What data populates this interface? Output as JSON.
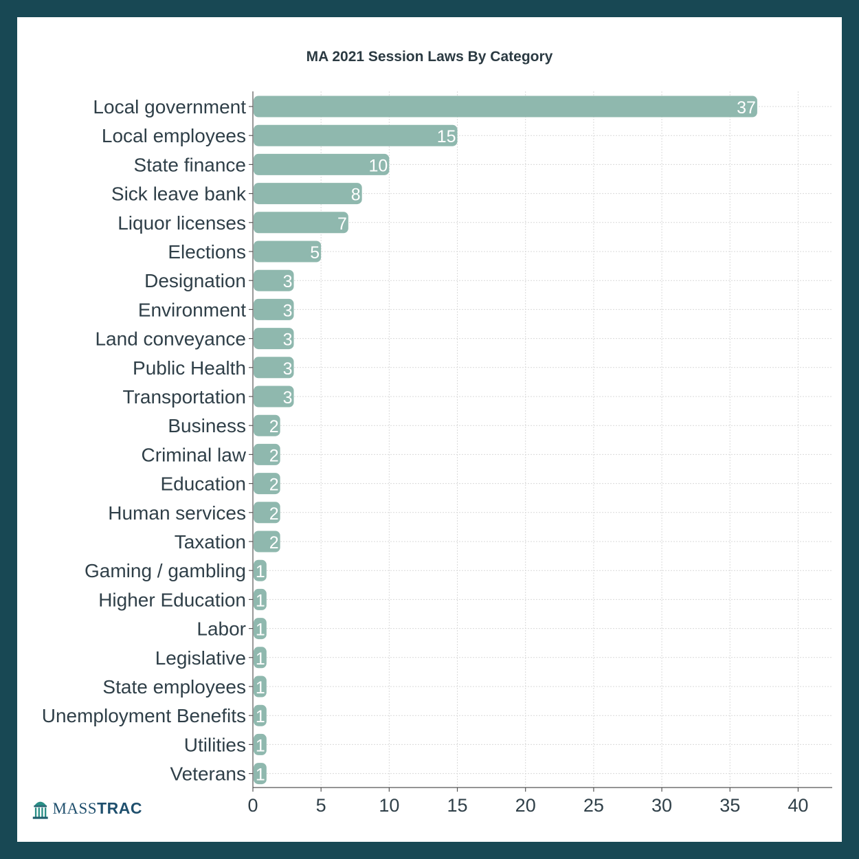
{
  "colors": {
    "frame": "#184854",
    "bar": "#8fb8ae",
    "grid": "#d9d9d9",
    "axis": "#555555"
  },
  "logo": {
    "icon": "capitol-dome-icon",
    "text_light": "MASS",
    "text_bold": "TRAC"
  },
  "chart_data": {
    "type": "bar",
    "orientation": "horizontal",
    "title": "MA 2021 Session Laws By Category",
    "xlabel": "",
    "ylabel": "",
    "xlim": [
      0,
      42.5
    ],
    "xticks": [
      0,
      5,
      10,
      15,
      20,
      25,
      30,
      35,
      40
    ],
    "grid": true,
    "data_labels": true,
    "categories": [
      "Local government",
      "Local employees",
      "State finance",
      "Sick leave bank",
      "Liquor licenses",
      "Elections",
      "Designation",
      "Environment",
      "Land conveyance",
      "Public Health",
      "Transportation",
      "Business",
      "Criminal law",
      "Education",
      "Human services",
      "Taxation",
      "Gaming / gambling",
      "Higher Education",
      "Labor",
      "Legislative",
      "State employees",
      "Unemployment Benefits",
      "Utilities",
      "Veterans"
    ],
    "values": [
      37,
      15,
      10,
      8,
      7,
      5,
      3,
      3,
      3,
      3,
      3,
      2,
      2,
      2,
      2,
      2,
      1,
      1,
      1,
      1,
      1,
      1,
      1,
      1
    ]
  }
}
